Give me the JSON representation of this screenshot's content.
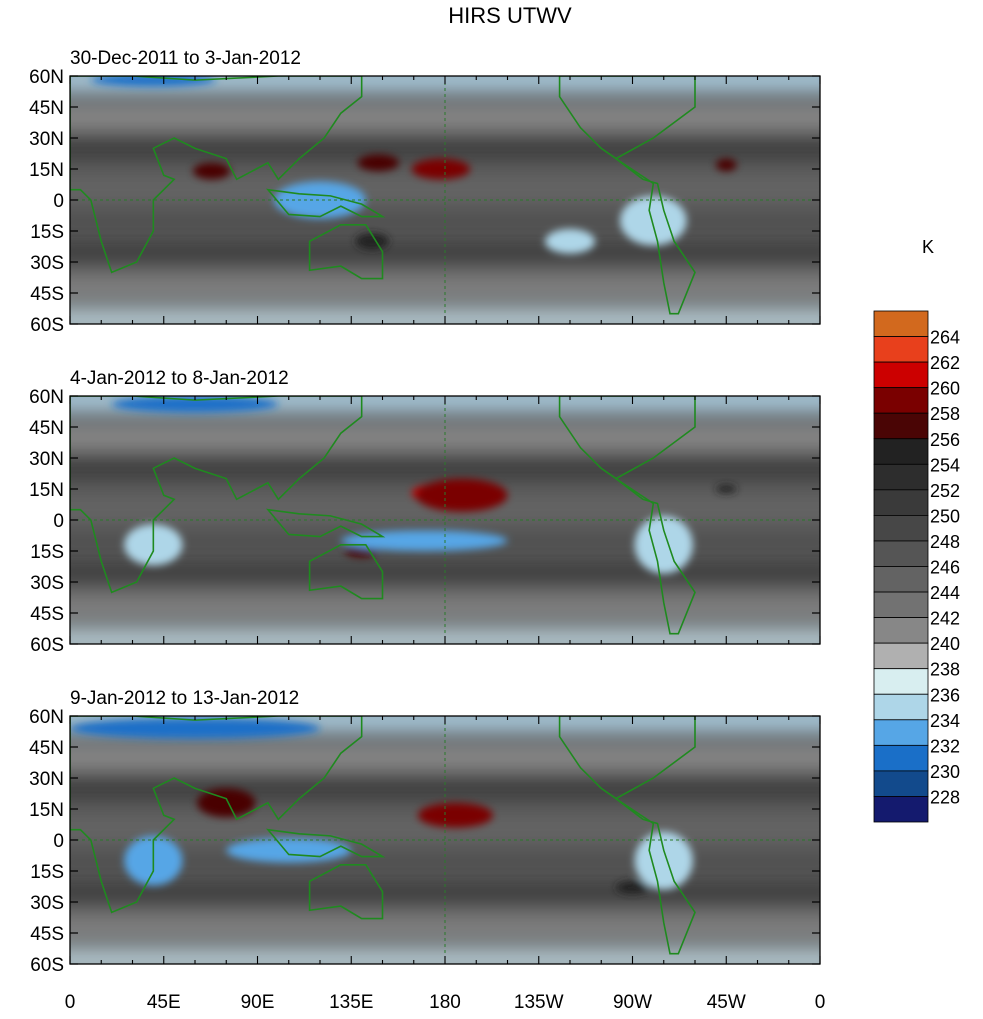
{
  "title": "HIRS UTWV",
  "chart_data": {
    "type": "heatmap",
    "title": "HIRS UTWV",
    "units_label": "K",
    "x_ticks": [
      "0",
      "45E",
      "90E",
      "135E",
      "180",
      "135W",
      "90W",
      "45W",
      "0"
    ],
    "x_range": [
      0,
      360
    ],
    "y_ticks": [
      "60N",
      "45N",
      "30N",
      "15N",
      "0",
      "15S",
      "30S",
      "45S",
      "60S"
    ],
    "y_range": [
      60,
      -60
    ],
    "grid": false,
    "legend_position": "right",
    "colorbar": {
      "labels": [
        "264",
        "262",
        "260",
        "258",
        "256",
        "254",
        "252",
        "250",
        "248",
        "246",
        "244",
        "242",
        "240",
        "238",
        "236",
        "234",
        "232",
        "230",
        "228"
      ],
      "colors": [
        "#d2691e",
        "#e8401c",
        "#cc0000",
        "#7a0000",
        "#4a0505",
        "#222222",
        "#2d2d2d",
        "#3a3a3a",
        "#474747",
        "#555555",
        "#636363",
        "#727272",
        "#878787",
        "#b0b0b0",
        "#d8eef0",
        "#aed6e8",
        "#56a6e6",
        "#1a6fc8",
        "#124a8c",
        "#141a6e"
      ]
    },
    "panels": [
      {
        "subtitle": "30-Dec-2011 to 3-Jan-2012",
        "features": [
          {
            "label": "260",
            "cx": 178,
            "cy": 15,
            "rx": 14,
            "ry": 5
          },
          {
            "label": "258",
            "cx": 148,
            "cy": 18,
            "rx": 10,
            "ry": 4
          },
          {
            "label": "258",
            "cx": 68,
            "cy": 14,
            "rx": 9,
            "ry": 4
          },
          {
            "label": "258",
            "cx": 315,
            "cy": 17,
            "rx": 5,
            "ry": 3
          },
          {
            "label": "256",
            "cx": 145,
            "cy": -20,
            "rx": 8,
            "ry": 4
          },
          {
            "label": "234",
            "cx": 120,
            "cy": 0,
            "rx": 22,
            "ry": 9
          },
          {
            "label": "232",
            "cx": 40,
            "cy": 58,
            "rx": 30,
            "ry": 3
          },
          {
            "label": "236",
            "cx": 240,
            "cy": -20,
            "rx": 12,
            "ry": 6
          },
          {
            "label": "236",
            "cx": 280,
            "cy": -10,
            "rx": 16,
            "ry": 12
          }
        ]
      },
      {
        "subtitle": "4-Jan-2012 to 8-Jan-2012",
        "features": [
          {
            "label": "262",
            "cx": 180,
            "cy": 13,
            "rx": 16,
            "ry": 5
          },
          {
            "label": "260",
            "cx": 188,
            "cy": 12,
            "rx": 22,
            "ry": 8
          },
          {
            "label": "258",
            "cx": 140,
            "cy": -15,
            "rx": 8,
            "ry": 3
          },
          {
            "label": "256",
            "cx": 315,
            "cy": 15,
            "rx": 5,
            "ry": 2
          },
          {
            "label": "234",
            "cx": 170,
            "cy": -10,
            "rx": 40,
            "ry": 5
          },
          {
            "label": "232",
            "cx": 60,
            "cy": 56,
            "rx": 40,
            "ry": 4
          },
          {
            "label": "236",
            "cx": 40,
            "cy": -12,
            "rx": 14,
            "ry": 10
          },
          {
            "label": "236",
            "cx": 285,
            "cy": -12,
            "rx": 14,
            "ry": 14
          }
        ]
      },
      {
        "subtitle": "9-Jan-2012 to 13-Jan-2012",
        "features": [
          {
            "label": "262",
            "cx": 183,
            "cy": 12,
            "rx": 9,
            "ry": 3
          },
          {
            "label": "260",
            "cx": 185,
            "cy": 12,
            "rx": 18,
            "ry": 6
          },
          {
            "label": "258",
            "cx": 75,
            "cy": 18,
            "rx": 14,
            "ry": 7
          },
          {
            "label": "256",
            "cx": 270,
            "cy": -23,
            "rx": 8,
            "ry": 3
          },
          {
            "label": "234",
            "cx": 40,
            "cy": -10,
            "rx": 14,
            "ry": 12
          },
          {
            "label": "232",
            "cx": 60,
            "cy": 54,
            "rx": 60,
            "ry": 5
          },
          {
            "label": "234",
            "cx": 105,
            "cy": -5,
            "rx": 30,
            "ry": 6
          },
          {
            "label": "236",
            "cx": 285,
            "cy": -10,
            "rx": 14,
            "ry": 14
          }
        ]
      }
    ]
  }
}
